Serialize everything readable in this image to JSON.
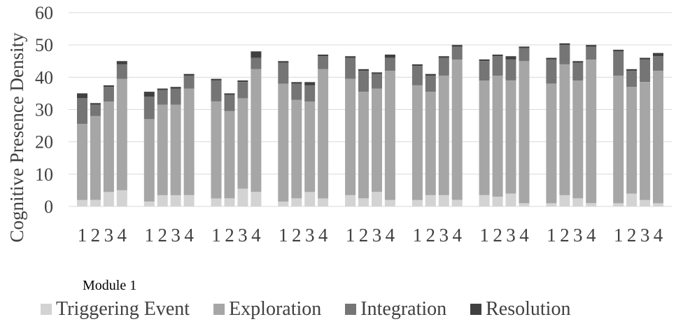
{
  "chart_data": {
    "type": "bar",
    "stacked": true,
    "title": "",
    "xlabel": "",
    "ylabel": "Cognitive Presence Density",
    "ylim": [
      0,
      60
    ],
    "yticks": [
      0,
      10,
      20,
      30,
      40,
      50,
      60
    ],
    "grid": true,
    "legend_position": "bottom",
    "group_caption": "Module 1",
    "categories": [
      "1",
      "2",
      "3",
      "4",
      "1",
      "2",
      "3",
      "4",
      "1",
      "2",
      "3",
      "4",
      "1",
      "2",
      "3",
      "4",
      "1",
      "2",
      "3",
      "4",
      "1",
      "2",
      "3",
      "4",
      "1",
      "2",
      "3",
      "4",
      "1",
      "2",
      "3",
      "4",
      "1",
      "2",
      "3",
      "4"
    ],
    "series": [
      {
        "name": "Triggering Event",
        "color": "#d3d3d3",
        "values": [
          2,
          2,
          4.5,
          5,
          1.5,
          3.5,
          3.5,
          3.5,
          2.5,
          2.5,
          5.5,
          4.5,
          1.5,
          2.5,
          4.5,
          2.5,
          3.5,
          2.5,
          4.5,
          2,
          2,
          3.5,
          3.5,
          2,
          3.5,
          3,
          4,
          1,
          1,
          3.5,
          2.5,
          1,
          1,
          4,
          2,
          1
        ]
      },
      {
        "name": "Exploration",
        "color": "#a6a6a6",
        "values": [
          23.5,
          26,
          28,
          34.5,
          25.5,
          28,
          28,
          33,
          30,
          27,
          28,
          38,
          36.5,
          30.5,
          28,
          40,
          36,
          33,
          32,
          40,
          35.5,
          32,
          37,
          43.5,
          35.5,
          37.5,
          35,
          44,
          37,
          40.5,
          36.5,
          44.5,
          39.5,
          33,
          36.5,
          41
        ]
      },
      {
        "name": "Integration",
        "color": "#757575",
        "values": [
          8,
          3.5,
          4.5,
          4.5,
          7,
          4.5,
          5,
          4,
          6.5,
          5,
          5,
          3.5,
          6.5,
          5,
          5,
          4,
          6.5,
          6.5,
          4.5,
          4,
          6,
          5,
          5.5,
          4,
          6,
          6,
          6.5,
          4,
          7.5,
          6,
          5.5,
          4,
          7.5,
          5,
          7,
          4.5
        ]
      },
      {
        "name": "Resolution",
        "color": "#404040",
        "values": [
          1.5,
          0.5,
          0.5,
          1,
          1.5,
          0.5,
          0.5,
          0.5,
          0.5,
          0.5,
          0.5,
          2,
          0.5,
          0.5,
          1,
          0.5,
          0.5,
          0.5,
          0.5,
          1,
          0.5,
          0.5,
          0.5,
          0.5,
          0.5,
          0.5,
          1,
          0.5,
          0.5,
          0.5,
          0.5,
          0.5,
          0.5,
          0.5,
          0.5,
          1
        ]
      }
    ]
  }
}
